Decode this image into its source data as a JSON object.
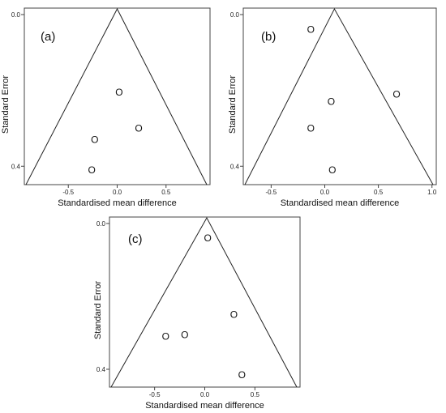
{
  "chart_data": [
    {
      "type": "scatter",
      "panel_label": "(a)",
      "xlabel": "Standardised mean difference",
      "ylabel": "Standard Error",
      "x_ticks": [
        "-0.5",
        "0.0",
        "0.5"
      ],
      "y_ticks": [
        "0.0",
        "0.4"
      ],
      "xlim": [
        -0.95,
        0.95
      ],
      "ylim": [
        0.0,
        0.44
      ],
      "y_reversed": true,
      "funnel_apex_x": 0.0,
      "marker": "O",
      "points": [
        {
          "x": 0.02,
          "y": 0.205
        },
        {
          "x": 0.22,
          "y": 0.3
        },
        {
          "x": -0.23,
          "y": 0.33
        },
        {
          "x": -0.26,
          "y": 0.41
        }
      ]
    },
    {
      "type": "scatter",
      "panel_label": "(b)",
      "xlabel": "Standardised mean difference",
      "ylabel": "Standard Error",
      "x_ticks": [
        "-0.5",
        "0.0",
        "0.5",
        "1.0"
      ],
      "y_ticks": [
        "0.0",
        "0.4"
      ],
      "xlim": [
        -0.76,
        1.04
      ],
      "ylim": [
        0.0,
        0.44
      ],
      "y_reversed": true,
      "funnel_apex_x": 0.09,
      "marker": "O",
      "points": [
        {
          "x": -0.13,
          "y": 0.04
        },
        {
          "x": 0.67,
          "y": 0.21
        },
        {
          "x": 0.06,
          "y": 0.23
        },
        {
          "x": -0.13,
          "y": 0.3
        },
        {
          "x": 0.07,
          "y": 0.41
        }
      ]
    },
    {
      "type": "scatter",
      "panel_label": "(c)",
      "xlabel": "Standardised mean difference",
      "ylabel": "Standard Error",
      "x_ticks": [
        "-0.5",
        "0.0",
        "0.5"
      ],
      "y_ticks": [
        "0.0",
        "0.4"
      ],
      "xlim": [
        -0.95,
        0.95
      ],
      "ylim": [
        0.0,
        0.44
      ],
      "y_reversed": true,
      "funnel_apex_x": 0.02,
      "marker": "O",
      "points": [
        {
          "x": 0.03,
          "y": 0.04
        },
        {
          "x": 0.29,
          "y": 0.25
        },
        {
          "x": -0.2,
          "y": 0.305
        },
        {
          "x": -0.39,
          "y": 0.31
        },
        {
          "x": 0.37,
          "y": 0.415
        }
      ]
    }
  ]
}
